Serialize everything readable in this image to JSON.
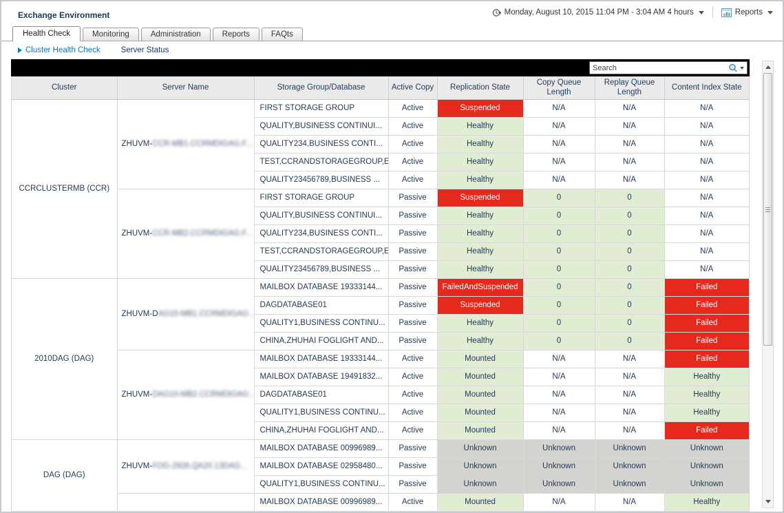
{
  "window_title": "Exchange Environment",
  "header": {
    "time_range": {
      "label": "Monday, August 10, 2015 11:04 PM - 3:04 AM 4 hours"
    },
    "reports": {
      "label": "Reports"
    }
  },
  "tabs": [
    {
      "label": "Health Check",
      "active": true
    },
    {
      "label": "Monitoring",
      "active": false
    },
    {
      "label": "Administration",
      "active": false
    },
    {
      "label": "Reports",
      "active": false
    },
    {
      "label": "FAQts",
      "active": false
    }
  ],
  "breadcrumb": [
    {
      "label": "Cluster Health Check",
      "selected": true
    },
    {
      "label": "Server Status",
      "selected": false
    }
  ],
  "search": {
    "placeholder": "Search"
  },
  "table": {
    "columns": [
      "Cluster",
      "Server Name",
      "Storage Group/Database",
      "Active Copy",
      "Replication State",
      "Copy Queue Length",
      "Replay Queue Length",
      "Content Index State"
    ],
    "status_colors": {
      "red": "#e5291c",
      "green": "#e1edd2",
      "gray": "#d3d3cf",
      "white": "#ffffff"
    },
    "status_text_on_red": "#ffffff",
    "groups": [
      {
        "cluster": "CCRCLUSTERMB (CCR)",
        "servers": [
          {
            "name_prefix": "ZHUVM-",
            "name_redacted": "CCR-MB1.CCRMDIGAG.F...",
            "rows": [
              [
                "FIRST STORAGE GROUP",
                "Active",
                [
                  "Suspended",
                  "red"
                ],
                [
                  "N/A",
                  "white"
                ],
                [
                  "N/A",
                  "white"
                ],
                [
                  "N/A",
                  "white"
                ]
              ],
              [
                "QUALITY,BUSINESS CONTINUI...",
                "Active",
                [
                  "Healthy",
                  "green"
                ],
                [
                  "N/A",
                  "white"
                ],
                [
                  "N/A",
                  "white"
                ],
                [
                  "N/A",
                  "white"
                ]
              ],
              [
                "QUALITY234,BUSINESS CONTI...",
                "Active",
                [
                  "Healthy",
                  "green"
                ],
                [
                  "N/A",
                  "white"
                ],
                [
                  "N/A",
                  "white"
                ],
                [
                  "N/A",
                  "white"
                ]
              ],
              [
                "TEST,CCRANDSTORAGEGROUP,E...",
                "Active",
                [
                  "Healthy",
                  "green"
                ],
                [
                  "N/A",
                  "white"
                ],
                [
                  "N/A",
                  "white"
                ],
                [
                  "N/A",
                  "white"
                ]
              ],
              [
                "QUALITY23456789,BUSINESS ...",
                "Active",
                [
                  "Healthy",
                  "green"
                ],
                [
                  "N/A",
                  "white"
                ],
                [
                  "N/A",
                  "white"
                ],
                [
                  "N/A",
                  "white"
                ]
              ]
            ]
          },
          {
            "name_prefix": "ZHUVM-",
            "name_redacted": "CCR-MB2.CCRMDIGAG.F...",
            "rows": [
              [
                "FIRST STORAGE GROUP",
                "Passive",
                [
                  "Suspended",
                  "red"
                ],
                [
                  "0",
                  "green"
                ],
                [
                  "0",
                  "green"
                ],
                [
                  "N/A",
                  "white"
                ]
              ],
              [
                "QUALITY,BUSINESS CONTINUI...",
                "Passive",
                [
                  "Healthy",
                  "green"
                ],
                [
                  "0",
                  "green"
                ],
                [
                  "0",
                  "green"
                ],
                [
                  "N/A",
                  "white"
                ]
              ],
              [
                "QUALITY234,BUSINESS CONTI...",
                "Passive",
                [
                  "Healthy",
                  "green"
                ],
                [
                  "0",
                  "green"
                ],
                [
                  "0",
                  "green"
                ],
                [
                  "N/A",
                  "white"
                ]
              ],
              [
                "TEST,CCRANDSTORAGEGROUP,E...",
                "Passive",
                [
                  "Healthy",
                  "green"
                ],
                [
                  "0",
                  "green"
                ],
                [
                  "0",
                  "green"
                ],
                [
                  "N/A",
                  "white"
                ]
              ],
              [
                "QUALITY23456789,BUSINESS ...",
                "Passive",
                [
                  "Healthy",
                  "green"
                ],
                [
                  "0",
                  "green"
                ],
                [
                  "0",
                  "green"
                ],
                [
                  "N/A",
                  "white"
                ]
              ]
            ]
          }
        ]
      },
      {
        "cluster": "2010DAG (DAG)",
        "servers": [
          {
            "name_prefix": "ZHUVM-D",
            "name_redacted": "AG10-MB1.CCRMDIGAG ..",
            "rows": [
              [
                "MAILBOX DATABASE 19333144...",
                "Passive",
                [
                  "FailedAndSuspended",
                  "red"
                ],
                [
                  "0",
                  "green"
                ],
                [
                  "0",
                  "green"
                ],
                [
                  "Failed",
                  "red"
                ]
              ],
              [
                "DAGDATABASE01",
                "Passive",
                [
                  "Suspended",
                  "red"
                ],
                [
                  "0",
                  "green"
                ],
                [
                  "0",
                  "green"
                ],
                [
                  "Failed",
                  "red"
                ]
              ],
              [
                "QUALITY1,BUSINESS CONTINU...",
                "Passive",
                [
                  "Healthy",
                  "green"
                ],
                [
                  "0",
                  "green"
                ],
                [
                  "0",
                  "green"
                ],
                [
                  "Failed",
                  "red"
                ]
              ],
              [
                "CHINA,ZHUHAI FOGLIGHT AND...",
                "Passive",
                [
                  "Healthy",
                  "green"
                ],
                [
                  "0",
                  "green"
                ],
                [
                  "0",
                  "green"
                ],
                [
                  "Failed",
                  "red"
                ]
              ]
            ]
          },
          {
            "name_prefix": "ZHUVM-",
            "name_redacted": "DAG10-MB2.CCRMDIGAG ..",
            "rows": [
              [
                "MAILBOX DATABASE 19333144...",
                "Active",
                [
                  "Mounted",
                  "green"
                ],
                [
                  "N/A",
                  "white"
                ],
                [
                  "N/A",
                  "white"
                ],
                [
                  "Failed",
                  "red"
                ]
              ],
              [
                "MAILBOX DATABASE 19491832...",
                "Active",
                [
                  "Mounted",
                  "green"
                ],
                [
                  "N/A",
                  "white"
                ],
                [
                  "N/A",
                  "white"
                ],
                [
                  "Healthy",
                  "green"
                ]
              ],
              [
                "DAGDATABASE01",
                "Active",
                [
                  "Mounted",
                  "green"
                ],
                [
                  "N/A",
                  "white"
                ],
                [
                  "N/A",
                  "white"
                ],
                [
                  "Healthy",
                  "green"
                ]
              ],
              [
                "QUALITY1,BUSINESS CONTINU...",
                "Active",
                [
                  "Mounted",
                  "green"
                ],
                [
                  "N/A",
                  "white"
                ],
                [
                  "N/A",
                  "white"
                ],
                [
                  "Healthy",
                  "green"
                ]
              ],
              [
                "CHINA,ZHUHAI FOGLIGHT AND...",
                "Active",
                [
                  "Mounted",
                  "green"
                ],
                [
                  "N/A",
                  "white"
                ],
                [
                  "N/A",
                  "white"
                ],
                [
                  "Failed",
                  "red"
                ]
              ]
            ]
          }
        ]
      },
      {
        "cluster": "DAG (DAG)",
        "servers": [
          {
            "name_prefix": "ZHUVM-",
            "name_redacted": "FOG-2926.QA20.13DAG...",
            "rows": [
              [
                "MAILBOX DATABASE 00996989...",
                "Passive",
                [
                  "Unknown",
                  "gray"
                ],
                [
                  "Unknown",
                  "gray"
                ],
                [
                  "Unknown",
                  "gray"
                ],
                [
                  "Unknown",
                  "gray"
                ]
              ],
              [
                "MAILBOX DATABASE 02958480...",
                "Passive",
                [
                  "Unknown",
                  "gray"
                ],
                [
                  "Unknown",
                  "gray"
                ],
                [
                  "Unknown",
                  "gray"
                ],
                [
                  "Unknown",
                  "gray"
                ]
              ],
              [
                "QUALITY1,BUSINESS CONTINU...",
                "Passive",
                [
                  "Unknown",
                  "gray"
                ],
                [
                  "Unknown",
                  "gray"
                ],
                [
                  "Unknown",
                  "gray"
                ],
                [
                  "Unknown",
                  "gray"
                ]
              ]
            ]
          },
          {
            "name_prefix": "",
            "name_redacted": "",
            "rows": [
              [
                "MAILBOX DATABASE 00996989...",
                "Active",
                [
                  "Mounted",
                  "green"
                ],
                [
                  "N/A",
                  "white"
                ],
                [
                  "N/A",
                  "white"
                ],
                [
                  "Healthy",
                  "green"
                ]
              ]
            ]
          }
        ]
      }
    ]
  }
}
